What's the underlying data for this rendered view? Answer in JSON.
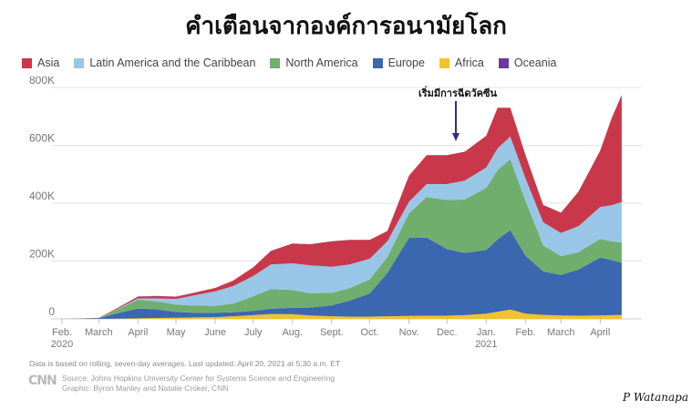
{
  "headline": "คำเตือนจากองค์การอนามัยโลก",
  "legend": [
    {
      "name": "Asia",
      "color": "#c9384a"
    },
    {
      "name": "Latin America and the Caribbean",
      "color": "#98c6e6"
    },
    {
      "name": "North America",
      "color": "#6fae6c"
    },
    {
      "name": "Europe",
      "color": "#3b66b0"
    },
    {
      "name": "Africa",
      "color": "#f1c22e"
    },
    {
      "name": "Oceania",
      "color": "#6a3b9e"
    }
  ],
  "annotation": "เริ่มมีการฉีดวัคซีน",
  "footer": {
    "note": "Data is based on rolling, seven-day averages. Last updated: April 20, 2021 at 5:30 a.m. ET",
    "logo": "CNN",
    "source": "Source: Johns Hopkins University Center for Systems Science and Engineering",
    "graphic": "Graphic: Byron Manley and Natalie Croker, CNN"
  },
  "signature": "P Watanapa",
  "chart_data": {
    "type": "area",
    "stacked": true,
    "ylim": [
      0,
      800000
    ],
    "yticks": [
      0,
      200000,
      400000,
      600000,
      800000
    ],
    "ytick_labels": [
      "0",
      "200K",
      "400K",
      "600K",
      "800K"
    ],
    "xtick_labels": [
      {
        "label": "Feb.",
        "sub": "2020"
      },
      {
        "label": "March",
        "sub": ""
      },
      {
        "label": "April",
        "sub": ""
      },
      {
        "label": "May",
        "sub": ""
      },
      {
        "label": "June",
        "sub": ""
      },
      {
        "label": "July",
        "sub": ""
      },
      {
        "label": "Aug.",
        "sub": ""
      },
      {
        "label": "Sept.",
        "sub": ""
      },
      {
        "label": "Oct.",
        "sub": ""
      },
      {
        "label": "Nov.",
        "sub": ""
      },
      {
        "label": "Dec.",
        "sub": ""
      },
      {
        "label": "Jan.",
        "sub": "2021"
      },
      {
        "label": "Feb.",
        "sub": ""
      },
      {
        "label": "March",
        "sub": ""
      },
      {
        "label": "April",
        "sub": ""
      }
    ],
    "x": [
      "2020-02-01",
      "2020-03-01",
      "2020-03-15",
      "2020-04-01",
      "2020-04-15",
      "2020-05-01",
      "2020-05-15",
      "2020-06-01",
      "2020-06-15",
      "2020-07-01",
      "2020-07-15",
      "2020-08-01",
      "2020-08-15",
      "2020-09-01",
      "2020-09-15",
      "2020-10-01",
      "2020-10-15",
      "2020-11-01",
      "2020-11-15",
      "2020-12-01",
      "2020-12-15",
      "2021-01-01",
      "2021-01-10",
      "2021-01-20",
      "2021-02-01",
      "2021-02-15",
      "2021-03-01",
      "2021-03-15",
      "2021-04-01",
      "2021-04-10",
      "2021-04-18"
    ],
    "series": [
      {
        "name": "Africa",
        "values": [
          0,
          0,
          500,
          2000,
          3000,
          4000,
          5000,
          6000,
          9000,
          13000,
          17000,
          16000,
          12000,
          9000,
          8000,
          8000,
          9000,
          10000,
          11000,
          11000,
          13000,
          18000,
          25000,
          32000,
          18000,
          14000,
          12000,
          11000,
          12000,
          13000,
          14000
        ]
      },
      {
        "name": "Europe",
        "values": [
          0,
          2000,
          18000,
          34000,
          30000,
          20000,
          16000,
          15000,
          14000,
          15000,
          18000,
          22000,
          27000,
          38000,
          55000,
          80000,
          150000,
          270000,
          270000,
          230000,
          215000,
          220000,
          250000,
          275000,
          200000,
          150000,
          140000,
          160000,
          200000,
          190000,
          180000
        ]
      },
      {
        "name": "North America",
        "values": [
          0,
          1000,
          12000,
          30000,
          28000,
          25000,
          25000,
          24000,
          30000,
          50000,
          68000,
          62000,
          50000,
          43000,
          43000,
          48000,
          55000,
          85000,
          140000,
          170000,
          185000,
          215000,
          240000,
          245000,
          190000,
          90000,
          65000,
          60000,
          65000,
          65000,
          70000
        ]
      },
      {
        "name": "Latin America and the Caribbean",
        "values": [
          0,
          0,
          2000,
          5000,
          10000,
          20000,
          35000,
          50000,
          60000,
          70000,
          85000,
          92000,
          96000,
          90000,
          82000,
          72000,
          55000,
          40000,
          45000,
          55000,
          65000,
          70000,
          75000,
          78000,
          78000,
          80000,
          80000,
          90000,
          110000,
          125000,
          140000
        ]
      },
      {
        "name": "Asia",
        "values": [
          0,
          500,
          3000,
          6000,
          8000,
          8000,
          9000,
          12000,
          19000,
          30000,
          47000,
          68000,
          73000,
          88000,
          85000,
          65000,
          35000,
          90000,
          100000,
          100000,
          100000,
          110000,
          140000,
          100000,
          80000,
          60000,
          70000,
          120000,
          195000,
          300000,
          370000
        ]
      },
      {
        "name": "Oceania",
        "values": [
          0,
          0,
          300,
          500,
          400,
          200,
          100,
          100,
          100,
          400,
          600,
          500,
          300,
          200,
          100,
          100,
          100,
          100,
          100,
          100,
          100,
          100,
          100,
          100,
          100,
          100,
          100,
          100,
          100,
          100,
          100
        ]
      }
    ]
  }
}
